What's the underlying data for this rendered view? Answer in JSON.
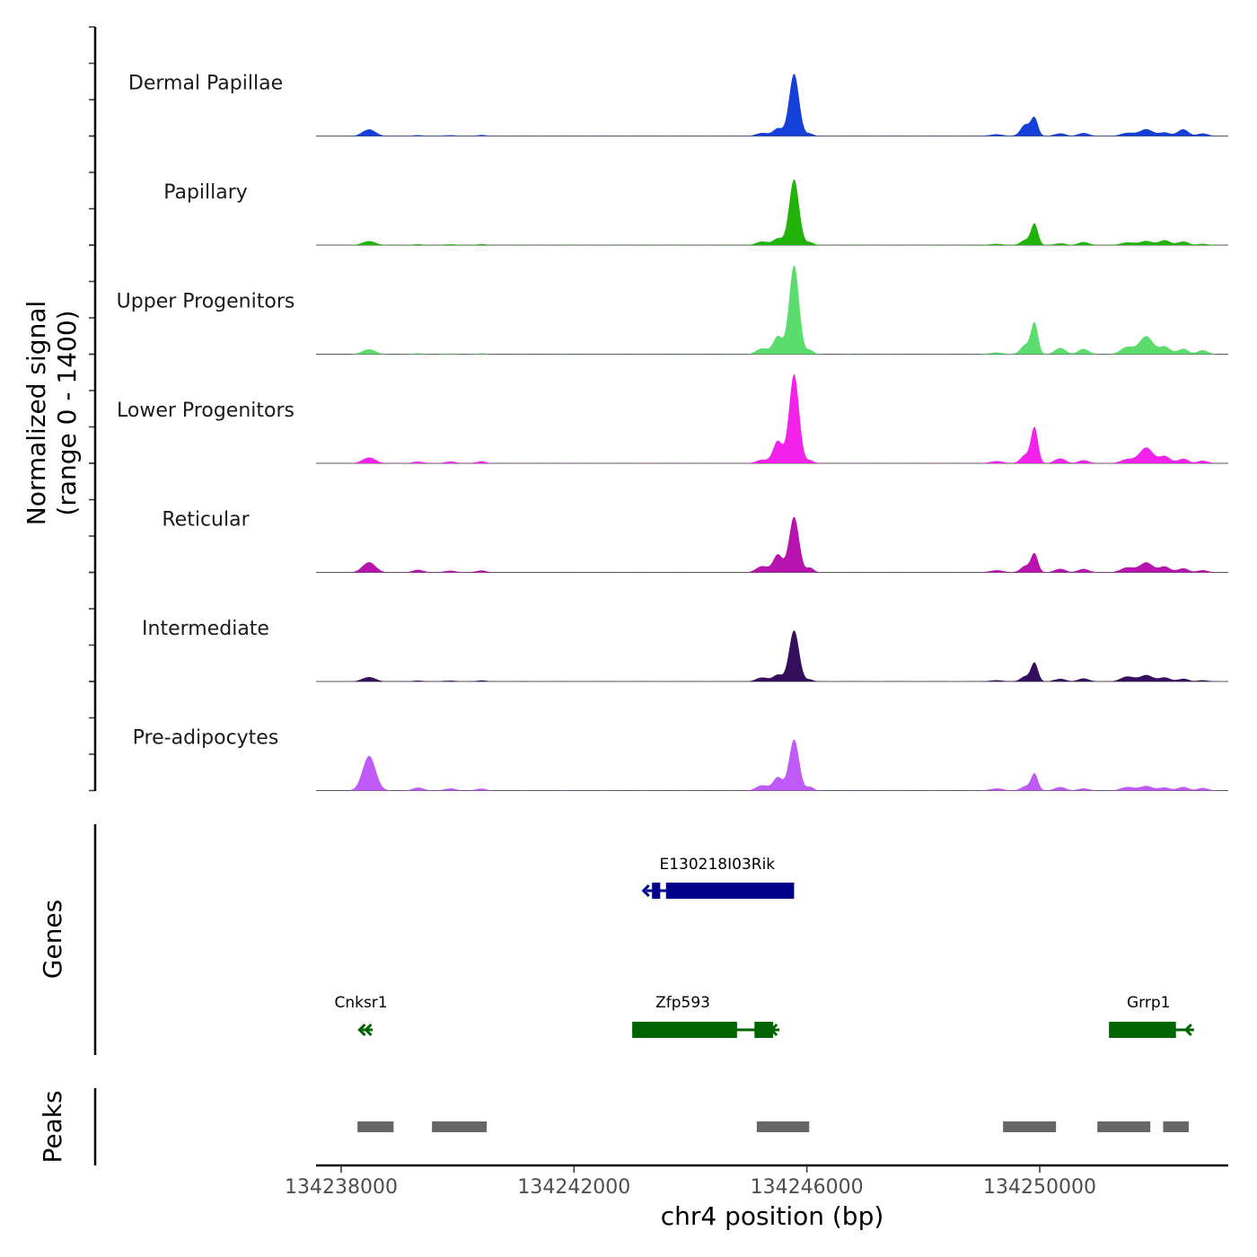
{
  "chart_data": {
    "type": "area",
    "genome_region": {
      "chromosome": "chr4",
      "start": 134237560,
      "end": 134253300
    },
    "x_axis": {
      "label": "chr4 position (bp)",
      "ticks": [
        134238000,
        134242000,
        134246000,
        134250000
      ],
      "tick_labels": [
        "134238000",
        "134242000",
        "134246000",
        "134250000"
      ]
    },
    "coverage_panel": {
      "ylabel_line1": "Normalized signal",
      "ylabel_line2": "(range 0 - 1400)",
      "ymax": 1400,
      "baseline_extent": [
        134237560,
        134253300
      ],
      "peak_shapes": [
        {
          "name": "p1",
          "center": 134238480,
          "width": 110
        },
        {
          "name": "p2",
          "center": 134239320,
          "width": 90
        },
        {
          "name": "p3",
          "center": 134239880,
          "width": 90
        },
        {
          "name": "p4",
          "center": 134240400,
          "width": 90
        },
        {
          "name": "p5",
          "center": 134245230,
          "width": 100
        },
        {
          "name": "p6",
          "center": 134245500,
          "width": 80
        },
        {
          "name": "p7",
          "center": 134245780,
          "width": 85
        },
        {
          "name": "p8",
          "center": 134246060,
          "width": 60
        },
        {
          "name": "p9",
          "center": 134249260,
          "width": 110
        },
        {
          "name": "p10",
          "center": 134249750,
          "width": 80
        },
        {
          "name": "p11",
          "center": 134249910,
          "width": 60
        },
        {
          "name": "p12",
          "center": 134250350,
          "width": 90
        },
        {
          "name": "p13",
          "center": 134250750,
          "width": 90
        },
        {
          "name": "p14",
          "center": 134251500,
          "width": 110
        },
        {
          "name": "p15",
          "center": 134251830,
          "width": 120
        },
        {
          "name": "p16",
          "center": 134252150,
          "width": 90
        },
        {
          "name": "p17",
          "center": 134252460,
          "width": 90
        },
        {
          "name": "p18",
          "center": 134252800,
          "width": 90
        }
      ],
      "tracks": [
        {
          "label": "Dermal Papillae",
          "color": "#1640DA",
          "heights": [
            150,
            20,
            20,
            20,
            70,
            170,
            1400,
            50,
            40,
            250,
            400,
            60,
            70,
            70,
            150,
            80,
            150,
            60
          ]
        },
        {
          "label": "Papillary",
          "color": "#22B30A",
          "heights": [
            90,
            20,
            20,
            20,
            80,
            150,
            1480,
            60,
            30,
            110,
            480,
            40,
            70,
            60,
            90,
            110,
            80,
            30
          ]
        },
        {
          "label": "Upper Progenitors",
          "color": "#5BDD6E",
          "heights": [
            110,
            20,
            15,
            15,
            130,
            400,
            2000,
            90,
            40,
            200,
            700,
            140,
            120,
            160,
            400,
            170,
            120,
            90
          ]
        },
        {
          "label": "Lower Progenitors",
          "color": "#F222EB",
          "heights": [
            130,
            40,
            40,
            40,
            80,
            500,
            2000,
            60,
            50,
            180,
            800,
            110,
            70,
            90,
            350,
            160,
            100,
            60
          ]
        },
        {
          "label": "Reticular",
          "color": "#B714AF",
          "heights": [
            230,
            60,
            40,
            40,
            140,
            400,
            1250,
            100,
            50,
            140,
            420,
            80,
            80,
            110,
            220,
            130,
            90,
            50
          ]
        },
        {
          "label": "Intermediate",
          "color": "#350F5C",
          "heights": [
            100,
            20,
            20,
            20,
            90,
            150,
            1150,
            40,
            30,
            110,
            420,
            60,
            70,
            110,
            140,
            90,
            60,
            30
          ]
        },
        {
          "label": "Pre-adipocytes",
          "color": "#C05AF6",
          "heights": [
            780,
            70,
            50,
            40,
            120,
            300,
            1150,
            80,
            50,
            90,
            380,
            80,
            50,
            80,
            100,
            70,
            80,
            60
          ]
        }
      ]
    },
    "genes_panel": {
      "ylabel": "Genes",
      "genes": [
        {
          "name": "E130218I03Rik",
          "color": "#00008B",
          "row": 0,
          "strand": "-",
          "start": 134243240,
          "end": 134245780,
          "label_center": 134244460,
          "exons": [
            [
              134243340,
              134243480
            ],
            [
              134243580,
              134245780
            ]
          ]
        },
        {
          "name": "Cnksr1",
          "color": "#006400",
          "row": 1,
          "strand": "-",
          "start": 134238300,
          "end": 134238540,
          "label_center": 134238340,
          "exons": []
        },
        {
          "name": "Zfp593",
          "color": "#006400",
          "row": 1,
          "strand": "-",
          "start": 134243000,
          "end": 134245530,
          "label_center": 134243870,
          "exons": [
            [
              134243000,
              134244800
            ],
            [
              134245100,
              134245420
            ]
          ]
        },
        {
          "name": "Grrp1",
          "color": "#006400",
          "row": 1,
          "strand": "-",
          "start": 134251190,
          "end": 134252650,
          "label_center": 134251870,
          "exons": [
            [
              134251190,
              134252340
            ]
          ]
        }
      ]
    },
    "peaks_panel": {
      "ylabel": "Peaks",
      "color": "#666666",
      "peaks": [
        [
          134238280,
          134238900
        ],
        [
          134239560,
          134240500
        ],
        [
          134245140,
          134246040
        ],
        [
          134249370,
          134250280
        ],
        [
          134250990,
          134251900
        ],
        [
          134252120,
          134252560
        ]
      ]
    }
  }
}
